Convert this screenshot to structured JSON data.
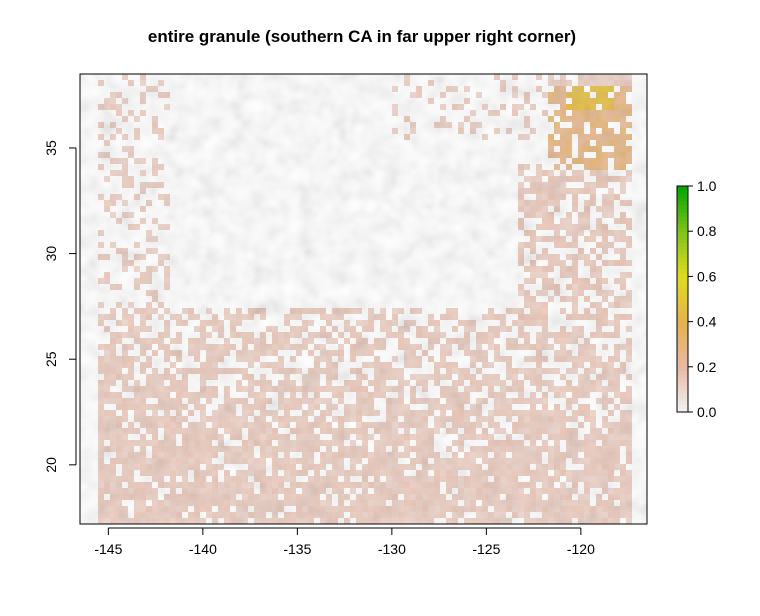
{
  "chart_data": {
    "type": "heatmap",
    "title": "entire granule (southern CA in far upper right corner)",
    "xlabel": "",
    "ylabel": "",
    "xlim": [
      -146.5,
      -116.5
    ],
    "ylim": [
      17.2,
      38.5
    ],
    "x_ticks": [
      -145,
      -140,
      -135,
      -130,
      -125,
      -120
    ],
    "x_tick_labels": [
      "-145",
      "-140",
      "-135",
      "-130",
      "-125",
      "-120"
    ],
    "y_ticks": [
      20,
      25,
      30,
      35
    ],
    "y_tick_labels": [
      "20",
      "25",
      "30",
      "35"
    ],
    "grid": false,
    "legend": {
      "type": "colorbar",
      "placement": "right",
      "range": [
        0.0,
        1.0
      ],
      "ticks": [
        0.0,
        0.2,
        0.4,
        0.6,
        0.8,
        1.0
      ],
      "tick_labels": [
        "0.0",
        "0.2",
        "0.4",
        "0.6",
        "0.8",
        "1.0"
      ],
      "color_stops": [
        {
          "value": 0.0,
          "color": "#f2f2f2"
        },
        {
          "value": 0.2,
          "color": "#e8b9a6"
        },
        {
          "value": 0.4,
          "color": "#e5b24b"
        },
        {
          "value": 0.6,
          "color": "#e0dc1f"
        },
        {
          "value": 0.8,
          "color": "#7fc21a"
        },
        {
          "value": 1.0,
          "color": "#00a600"
        }
      ]
    },
    "regions": [
      {
        "name": "southern pink field",
        "lon": [
          -145.8,
          -117.2
        ],
        "lat": [
          17.5,
          27.5
        ],
        "value": 0.12
      },
      {
        "name": "eastern pink band",
        "lon": [
          -123.5,
          -117.2
        ],
        "lat": [
          27.0,
          34.5
        ],
        "value": 0.13
      },
      {
        "name": "western pink strip",
        "lon": [
          -146.0,
          -142.0
        ],
        "lat": [
          17.5,
          38.0
        ],
        "value": 0.1
      },
      {
        "name": "southern CA coast",
        "lon": [
          -122.0,
          -117.2
        ],
        "lat": [
          34.0,
          38.2
        ],
        "value": 0.28
      },
      {
        "name": "southern CA land highs",
        "lon": [
          -121.0,
          -118.5
        ],
        "lat": [
          36.8,
          38.2
        ],
        "value": 0.45
      }
    ]
  }
}
